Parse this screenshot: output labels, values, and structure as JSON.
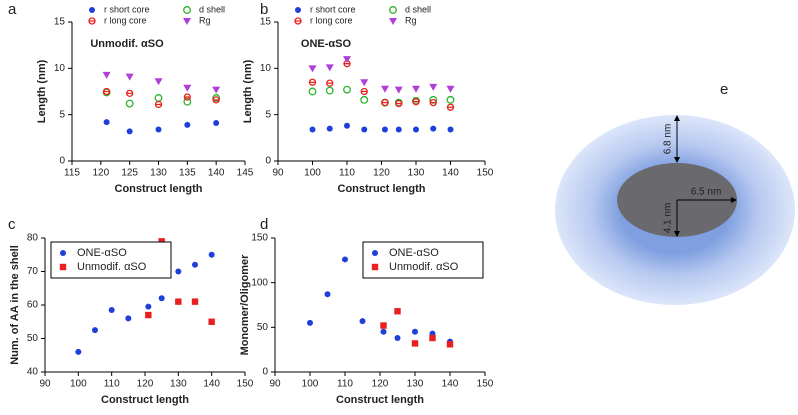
{
  "chart_data": [
    {
      "type": "scatter",
      "label": "a",
      "annotation": "Unmodif. αSO",
      "xlabel": "Construct length",
      "ylabel": "Length (nm)",
      "xlim": [
        115,
        145
      ],
      "xticks": [
        115,
        120,
        125,
        130,
        135,
        140,
        145
      ],
      "ylim": [
        0,
        15
      ],
      "yticks": [
        0,
        5,
        10,
        15
      ],
      "legend": "top",
      "legend_box": false,
      "series": [
        {
          "name": "r short core",
          "color": "#1f3fdb",
          "marker": "circle",
          "x": [
            121,
            125,
            130,
            135,
            140
          ],
          "values": [
            4.2,
            3.2,
            3.4,
            3.9,
            4.1
          ]
        },
        {
          "name": "d shell",
          "color": "#2bb52b",
          "marker": "open-circle",
          "x": [
            121,
            125,
            130,
            135,
            140
          ],
          "values": [
            7.4,
            6.2,
            6.8,
            6.4,
            6.8
          ]
        },
        {
          "name": "r long core",
          "color": "#e82020",
          "marker": "half-circle",
          "x": [
            121,
            125,
            130,
            135,
            140
          ],
          "values": [
            7.5,
            7.3,
            6.1,
            6.9,
            6.6
          ]
        },
        {
          "name": "Rg",
          "color": "#b03fd8",
          "marker": "triangle-down",
          "x": [
            121,
            125,
            130,
            135,
            140
          ],
          "values": [
            9.3,
            9.1,
            8.6,
            7.9,
            7.7
          ]
        }
      ]
    },
    {
      "type": "scatter",
      "label": "b",
      "annotation": "ONE-αSO",
      "xlabel": "Construct length",
      "ylabel": "Length (nm)",
      "xlim": [
        90,
        150
      ],
      "xticks": [
        90,
        100,
        110,
        120,
        130,
        140,
        150
      ],
      "ylim": [
        0,
        15
      ],
      "yticks": [
        0,
        5,
        10,
        15
      ],
      "legend": "top",
      "legend_box": false,
      "series": [
        {
          "name": "r short core",
          "color": "#1f3fdb",
          "marker": "circle",
          "x": [
            100,
            105,
            110,
            115,
            121,
            125,
            130,
            135,
            140
          ],
          "values": [
            3.4,
            3.5,
            3.8,
            3.4,
            3.4,
            3.4,
            3.4,
            3.5,
            3.4
          ]
        },
        {
          "name": "d shell",
          "color": "#2bb52b",
          "marker": "open-circle",
          "x": [
            100,
            105,
            110,
            115,
            121,
            125,
            130,
            135,
            140
          ],
          "values": [
            7.5,
            7.6,
            7.7,
            6.6,
            6.3,
            6.3,
            6.5,
            6.6,
            6.6
          ]
        },
        {
          "name": "r long core",
          "color": "#e82020",
          "marker": "half-circle",
          "x": [
            100,
            105,
            110,
            115,
            121,
            125,
            130,
            135,
            140
          ],
          "values": [
            8.5,
            8.4,
            10.5,
            7.5,
            6.3,
            6.2,
            6.4,
            6.3,
            5.8
          ]
        },
        {
          "name": "Rg",
          "color": "#b03fd8",
          "marker": "triangle-down",
          "x": [
            100,
            105,
            110,
            115,
            121,
            125,
            130,
            135,
            140
          ],
          "values": [
            10,
            10.1,
            11,
            8.5,
            7.8,
            7.7,
            7.8,
            8.0,
            7.8
          ]
        }
      ]
    },
    {
      "type": "scatter",
      "label": "c",
      "xlabel": "Construct length",
      "ylabel": "Num. of AA in the shell",
      "xlim": [
        90,
        150
      ],
      "xticks": [
        90,
        100,
        110,
        120,
        130,
        140,
        150
      ],
      "ylim": [
        40,
        80
      ],
      "yticks": [
        40,
        50,
        60,
        70,
        80
      ],
      "legend": "upper left",
      "legend_box": true,
      "series": [
        {
          "name": "ONE-αSO",
          "color": "#1f3fdb",
          "marker": "circle",
          "x": [
            100,
            105,
            110,
            115,
            121,
            125,
            130,
            135,
            140
          ],
          "values": [
            46,
            52.5,
            58.5,
            56,
            59.5,
            62,
            70,
            72,
            75
          ]
        },
        {
          "name": "Unmodif. αSO",
          "color": "#e82020",
          "marker": "square",
          "x": [
            121,
            125,
            130,
            135,
            140
          ],
          "values": [
            57,
            79,
            61,
            61,
            55
          ]
        }
      ]
    },
    {
      "type": "scatter",
      "label": "d",
      "xlabel": "Construct length",
      "ylabel": "Monomer/Oligomer",
      "xlim": [
        90,
        150
      ],
      "xticks": [
        90,
        100,
        110,
        120,
        130,
        140,
        150
      ],
      "ylim": [
        0,
        150
      ],
      "yticks": [
        0,
        50,
        100,
        150
      ],
      "legend": "upper right",
      "legend_box": true,
      "series": [
        {
          "name": "ONE-αSO",
          "color": "#1f3fdb",
          "marker": "circle",
          "x": [
            100,
            105,
            110,
            115,
            121,
            125,
            130,
            135,
            140
          ],
          "values": [
            55,
            87,
            126,
            57,
            45,
            38,
            45,
            43,
            34
          ]
        },
        {
          "name": "Unmodif. αSO",
          "color": "#e82020",
          "marker": "square",
          "x": [
            121,
            125,
            130,
            135,
            140
          ],
          "values": [
            52,
            68,
            32,
            38,
            31
          ]
        }
      ]
    }
  ],
  "diagram": {
    "label": "e",
    "shell": "6.8 nm",
    "long_radius": "6.5 nm",
    "short_radius": "4.1 nm"
  }
}
